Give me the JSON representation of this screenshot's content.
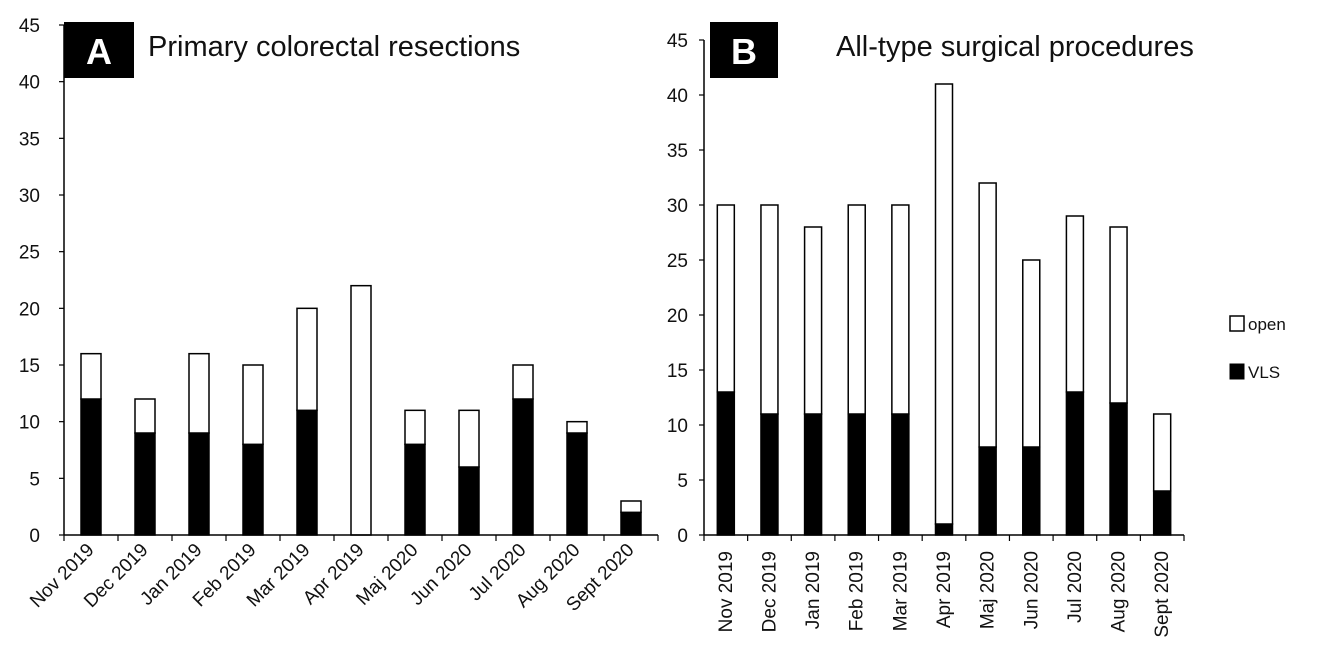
{
  "chart_data": [
    {
      "panel": "A",
      "type": "bar",
      "stacked": true,
      "title": "Primary colorectal resections",
      "xlabel": "",
      "ylabel": "",
      "ylim": [
        0,
        45
      ],
      "yticks": [
        0,
        5,
        10,
        15,
        20,
        25,
        30,
        35,
        40,
        45
      ],
      "categories": [
        "Nov 2019",
        "Dec 2019",
        "Jan 2019",
        "Feb 2019",
        "Mar 2019",
        "Apr 2019",
        "Maj 2020",
        "Jun 2020",
        "Jul 2020",
        "Aug 2020",
        "Sept 2020"
      ],
      "series": [
        {
          "name": "VLS",
          "color": "#000000",
          "values": [
            12,
            9,
            9,
            8,
            11,
            0,
            8,
            6,
            12,
            9,
            2
          ]
        },
        {
          "name": "open",
          "color": "#ffffff",
          "values": [
            4,
            3,
            7,
            7,
            9,
            22,
            3,
            5,
            3,
            1,
            1
          ]
        }
      ],
      "grid": false,
      "tick_label_rotation": "diagonal"
    },
    {
      "panel": "B",
      "type": "bar",
      "stacked": true,
      "title": "All-type surgical procedures",
      "xlabel": "",
      "ylabel": "",
      "ylim": [
        0,
        45
      ],
      "yticks": [
        0,
        5,
        10,
        15,
        20,
        25,
        30,
        35,
        40,
        45
      ],
      "categories": [
        "Nov 2019",
        "Dec 2019",
        "Jan 2019",
        "Feb 2019",
        "Mar 2019",
        "Apr 2019",
        "Maj 2020",
        "Jun 2020",
        "Jul 2020",
        "Aug 2020",
        "Sept 2020"
      ],
      "series": [
        {
          "name": "VLS",
          "color": "#000000",
          "values": [
            13,
            11,
            11,
            11,
            11,
            1,
            8,
            8,
            13,
            12,
            4
          ]
        },
        {
          "name": "open",
          "color": "#ffffff",
          "values": [
            17,
            19,
            17,
            19,
            19,
            40,
            24,
            17,
            16,
            16,
            7
          ]
        }
      ],
      "grid": false,
      "tick_label_rotation": "vertical",
      "legend_position": "right",
      "legend": [
        "open",
        "VLS"
      ]
    }
  ]
}
